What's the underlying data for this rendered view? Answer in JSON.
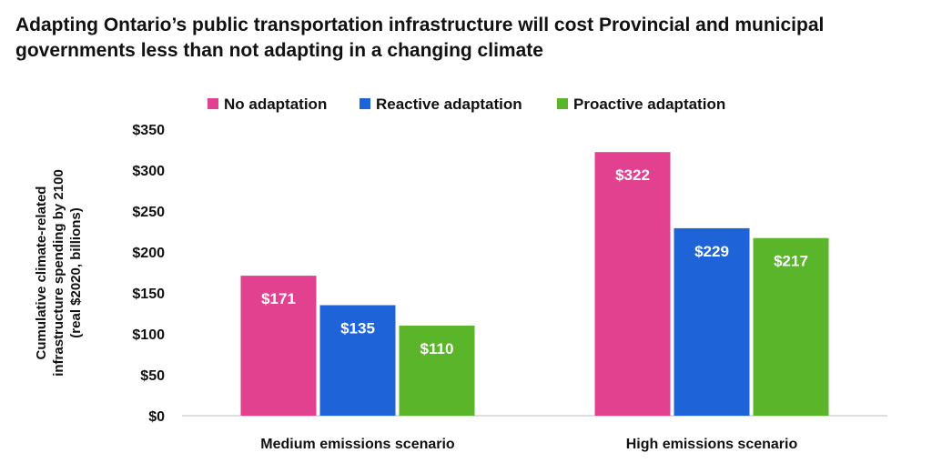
{
  "title_line1": "Adapting Ontario’s public transportation infrastructure will cost Provincial and municipal",
  "title_line2": "governments less than not adapting in a changing climate",
  "chart_data": {
    "type": "bar",
    "categories": [
      "Medium emissions scenario",
      "High emissions scenario"
    ],
    "series": [
      {
        "name": "No adaptation",
        "color": "#e2418f",
        "values": [
          171,
          322
        ],
        "labels": [
          "$171",
          "$322"
        ]
      },
      {
        "name": "Reactive adaptation",
        "color": "#1f63d8",
        "values": [
          135,
          229
        ],
        "labels": [
          "$135",
          "$229"
        ]
      },
      {
        "name": "Proactive adaptation",
        "color": "#5bb52b",
        "values": [
          110,
          217
        ],
        "labels": [
          "$110",
          "$217"
        ]
      }
    ],
    "ylabel_lines": [
      "Cumulative climate-related",
      "infrastructure spending by 2100",
      "(real $2020, billions)"
    ],
    "ylim": [
      0,
      350
    ],
    "yticks": [
      0,
      50,
      100,
      150,
      200,
      250,
      300,
      350
    ],
    "ytick_labels": [
      "$0",
      "$50",
      "$100",
      "$150",
      "$200",
      "$250",
      "$300",
      "$350"
    ],
    "legend_position": "top",
    "grid": false
  }
}
